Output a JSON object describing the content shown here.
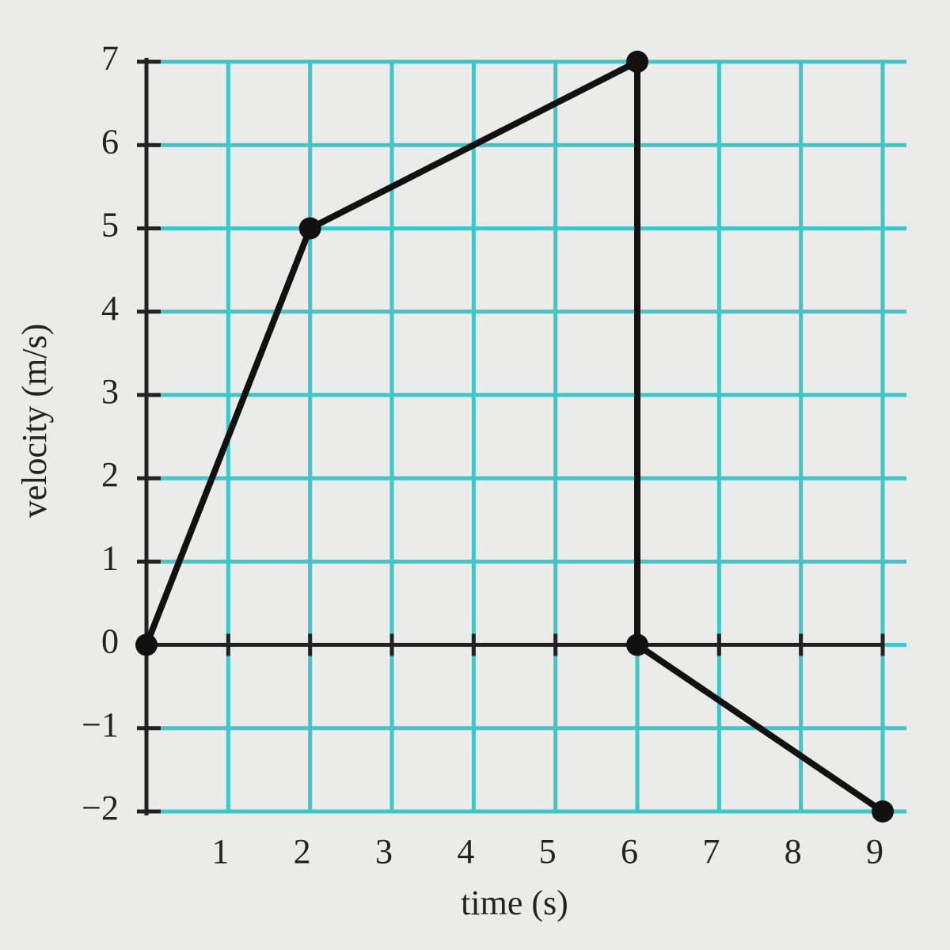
{
  "chart_data": {
    "type": "line",
    "x_label": "time (s)",
    "y_label": "velocity (m/s)",
    "x": [
      0,
      2,
      6,
      6,
      9
    ],
    "values": [
      0,
      5,
      7,
      0,
      -2
    ],
    "color": "#111111",
    "grid_color": "#3ec6c8",
    "xlim": [
      0,
      9
    ],
    "ylim": [
      -2,
      7
    ],
    "xticks": [
      1,
      2,
      3,
      4,
      5,
      6,
      7,
      8,
      9
    ],
    "yticks": [
      {
        "value": -2,
        "label": "−2"
      },
      {
        "value": -1,
        "label": "−1"
      },
      0,
      1,
      2,
      3,
      4,
      5,
      6,
      7
    ],
    "grid": true
  }
}
